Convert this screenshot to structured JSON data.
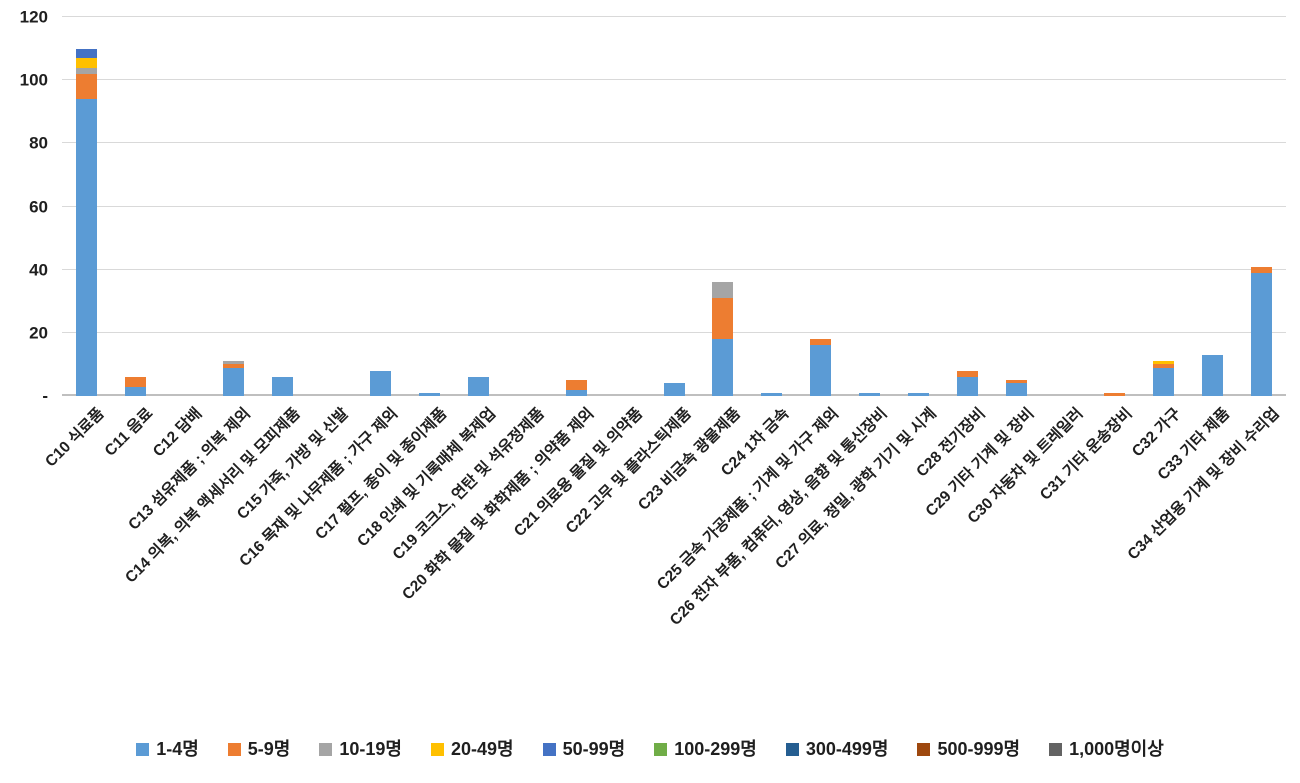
{
  "chart_data": {
    "type": "bar",
    "stacked": true,
    "title": "",
    "xlabel": "",
    "ylabel": "",
    "ylim": [
      0,
      120
    ],
    "ytick_interval": 20,
    "ytick_labels_bottom_up": [
      "-",
      "20",
      "40",
      "60",
      "80",
      "100",
      "120"
    ],
    "grid": true,
    "legend_position": "bottom",
    "categories": [
      "C10 식료품",
      "C11 음료",
      "C12 담배",
      "C13 섬유제품 ; 의복 제외",
      "C14 의복, 의복 액세서리 및 모피제품",
      "C15 가죽, 가방 및 신발",
      "C16 목재 및 나무제품 ; 가구 제외",
      "C17 펄프, 종이 및 종이제품",
      "C18 인쇄 및 기록매체 복제업",
      "C19 코크스, 연탄 및 석유정제품",
      "C20 화학 물질 및 화학제품 ; 의약품 제외",
      "C21 의료용 물질 및 의약품",
      "C22 고무 및 플라스틱제품",
      "C23 비금속 광물제품",
      "C24 1차 금속",
      "C25 금속 가공제품 ; 기계 및 가구 제외",
      "C26 전자 부품, 컴퓨터, 영상, 음향 및 통신장비",
      "C27 의료, 정밀, 광학 기기 및 시계",
      "C28 전기장비",
      "C29 기타 기계 및 장비",
      "C30 자동차 및 트레일러",
      "C31 기타 운송장비",
      "C32 가구",
      "C33 기타 제품",
      "C34 산업용 기계 및 장비 수리업"
    ],
    "series": [
      {
        "name": "1-4명",
        "color": "#5B9BD5",
        "values": [
          94,
          3,
          0,
          9,
          6,
          0,
          8,
          1,
          6,
          0,
          2,
          0,
          4,
          18,
          1,
          16,
          1,
          1,
          6,
          4,
          0,
          0,
          9,
          13,
          39
        ]
      },
      {
        "name": "5-9명",
        "color": "#ED7D31",
        "values": [
          8,
          3,
          0,
          1,
          0,
          0,
          0,
          0,
          0,
          0,
          3,
          0,
          0,
          13,
          0,
          2,
          0,
          0,
          2,
          1,
          0,
          1,
          1,
          0,
          2
        ]
      },
      {
        "name": "10-19명",
        "color": "#A5A5A5",
        "values": [
          2,
          0,
          0,
          1,
          0,
          0,
          0,
          0,
          0,
          0,
          0,
          0,
          0,
          5,
          0,
          0,
          0,
          0,
          0,
          0,
          0,
          0,
          0,
          0,
          0
        ]
      },
      {
        "name": "20-49명",
        "color": "#FFC000",
        "values": [
          3,
          0,
          0,
          0,
          0,
          0,
          0,
          0,
          0,
          0,
          0,
          0,
          0,
          0,
          0,
          0,
          0,
          0,
          0,
          0,
          0,
          0,
          1,
          0,
          0
        ]
      },
      {
        "name": "50-99명",
        "color": "#4472C4",
        "values": [
          3,
          0,
          0,
          0,
          0,
          0,
          0,
          0,
          0,
          0,
          0,
          0,
          0,
          0,
          0,
          0,
          0,
          0,
          0,
          0,
          0,
          0,
          0,
          0,
          0
        ]
      },
      {
        "name": "100-299명",
        "color": "#70AD47",
        "values": [
          0,
          0,
          0,
          0,
          0,
          0,
          0,
          0,
          0,
          0,
          0,
          0,
          0,
          0,
          0,
          0,
          0,
          0,
          0,
          0,
          0,
          0,
          0,
          0,
          0
        ]
      },
      {
        "name": "300-499명",
        "color": "#255E91",
        "values": [
          0,
          0,
          0,
          0,
          0,
          0,
          0,
          0,
          0,
          0,
          0,
          0,
          0,
          0,
          0,
          0,
          0,
          0,
          0,
          0,
          0,
          0,
          0,
          0,
          0
        ]
      },
      {
        "name": "500-999명",
        "color": "#9E480E",
        "values": [
          0,
          0,
          0,
          0,
          0,
          0,
          0,
          0,
          0,
          0,
          0,
          0,
          0,
          0,
          0,
          0,
          0,
          0,
          0,
          0,
          0,
          0,
          0,
          0,
          0
        ]
      },
      {
        "name": "1,000명이상",
        "color": "#636363",
        "values": [
          0,
          0,
          0,
          0,
          0,
          0,
          0,
          0,
          0,
          0,
          0,
          0,
          0,
          0,
          0,
          0,
          0,
          0,
          0,
          0,
          0,
          0,
          0,
          0,
          0
        ]
      }
    ]
  }
}
